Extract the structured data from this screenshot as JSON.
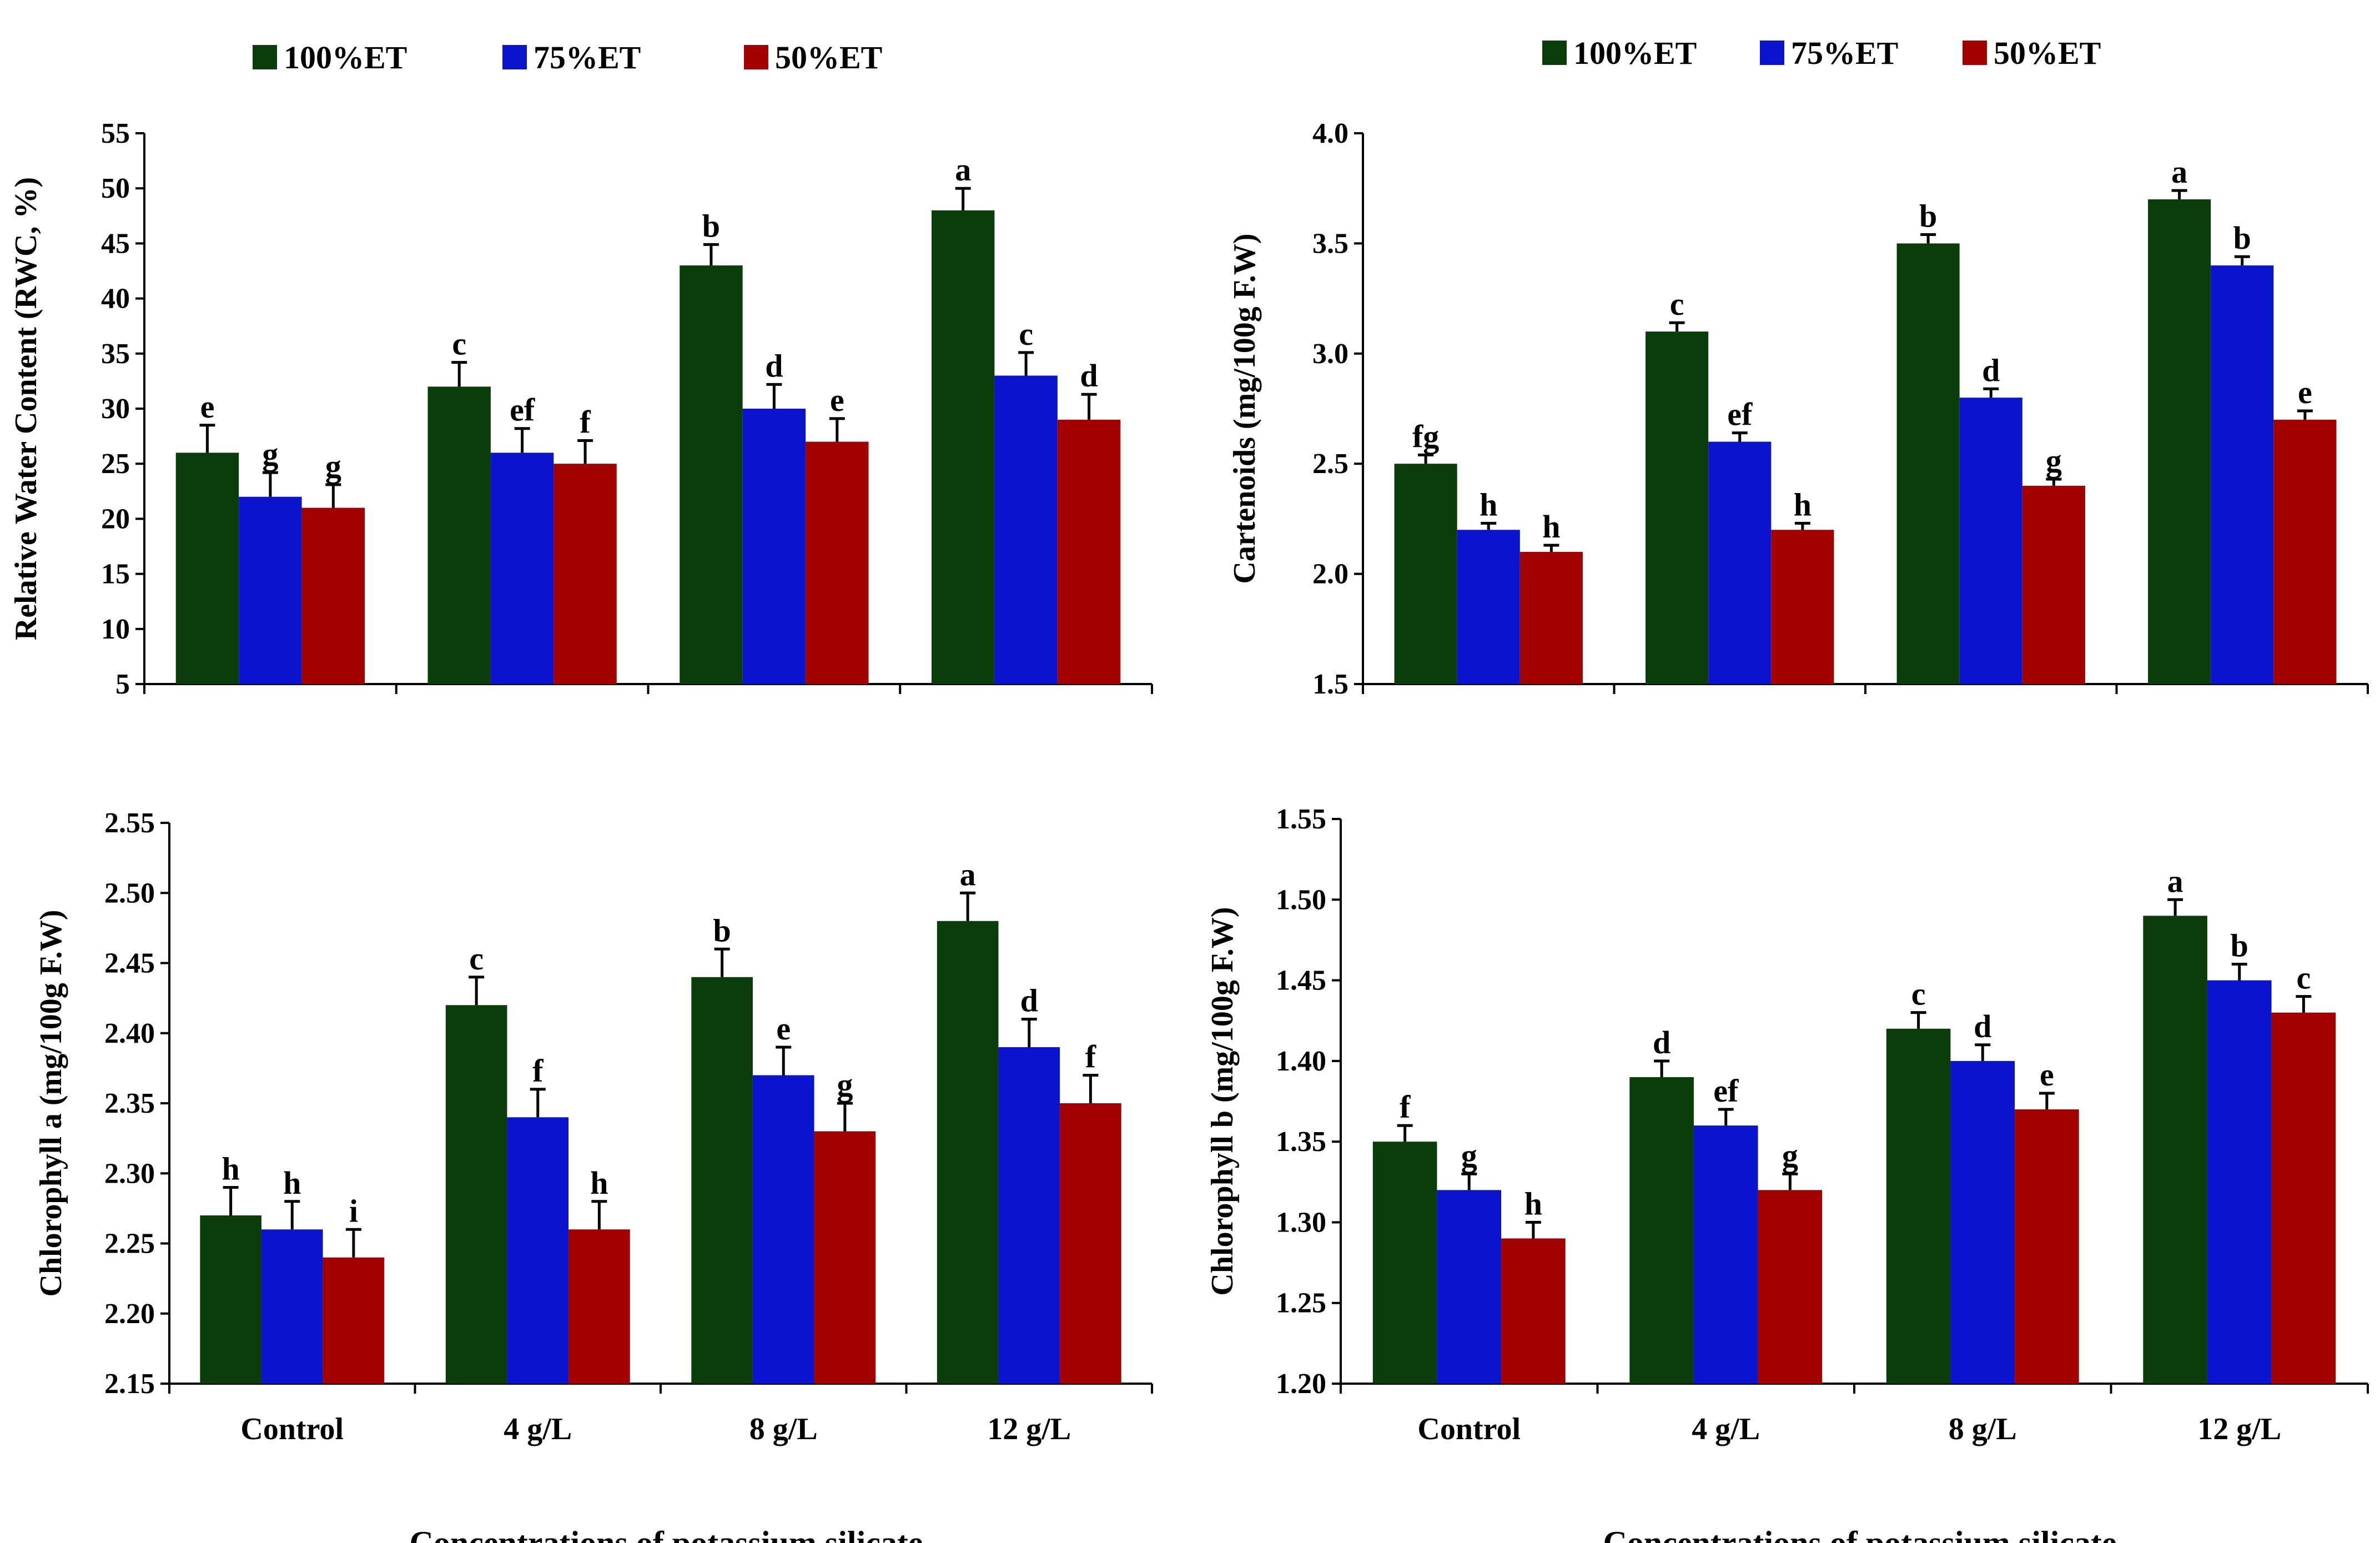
{
  "colors": {
    "100%ET": "#0b3d0b",
    "75%ET": "#0a14cc",
    "50%ET": "#a30000"
  },
  "legend": [
    "100%ET",
    "75%ET",
    "50%ET"
  ],
  "x_title": "Concentrations of potassium silicate",
  "chart_data": [
    {
      "type": "bar",
      "ylabel": "Relative Water Content (RWC, %)",
      "categories": [
        "Control",
        "4 g/L",
        "8 g/L",
        "12 g/L"
      ],
      "ylim": [
        5,
        55
      ],
      "yticks": [
        5,
        10,
        15,
        20,
        25,
        30,
        35,
        40,
        45,
        50,
        55
      ],
      "ytick_labels": [
        "5",
        "10",
        "15",
        "20",
        "25",
        "30",
        "35",
        "40",
        "45",
        "50",
        "55"
      ],
      "series": [
        {
          "name": "100%ET",
          "values": [
            26,
            32,
            43,
            48
          ],
          "errors": [
            2.5,
            2.2,
            1.9,
            2.0
          ],
          "letters": [
            "e",
            "c",
            "b",
            "a"
          ]
        },
        {
          "name": "75%ET",
          "values": [
            22,
            26,
            30,
            33
          ],
          "errors": [
            2.2,
            2.2,
            2.2,
            2.1
          ],
          "letters": [
            "g",
            "ef",
            "d",
            "c"
          ]
        },
        {
          "name": "50%ET",
          "values": [
            21,
            25,
            27,
            29
          ],
          "errors": [
            2.1,
            2.1,
            2.1,
            2.3
          ],
          "letters": [
            "g",
            "f",
            "e",
            "d"
          ]
        }
      ]
    },
    {
      "type": "bar",
      "ylabel": "Cartenoids (mg/100g F.W)",
      "categories": [
        "Control",
        "4 g/L",
        "8 g/L",
        "12 g/L"
      ],
      "ylim": [
        1.5,
        4.0
      ],
      "yticks": [
        1.5,
        2.0,
        2.5,
        3.0,
        3.5,
        4.0
      ],
      "ytick_labels": [
        "1.5",
        "2.0",
        "2.5",
        "3.0",
        "3.5",
        "4.0"
      ],
      "series": [
        {
          "name": "100%ET",
          "values": [
            2.5,
            3.1,
            3.5,
            3.7
          ],
          "errors": [
            0.04,
            0.04,
            0.04,
            0.04
          ],
          "letters": [
            "fg",
            "c",
            "b",
            "a"
          ]
        },
        {
          "name": "75%ET",
          "values": [
            2.2,
            2.6,
            2.8,
            3.4
          ],
          "errors": [
            0.03,
            0.04,
            0.04,
            0.04
          ],
          "letters": [
            "h",
            "ef",
            "d",
            "b"
          ]
        },
        {
          "name": "50%ET",
          "values": [
            2.1,
            2.2,
            2.4,
            2.7
          ],
          "errors": [
            0.03,
            0.03,
            0.03,
            0.04
          ],
          "letters": [
            "h",
            "h",
            "g",
            "e"
          ]
        }
      ]
    },
    {
      "type": "bar",
      "ylabel": "Chlorophyll a (mg/100g F.W)",
      "categories": [
        "Control",
        "4 g/L",
        "8 g/L",
        "12 g/L"
      ],
      "ylim": [
        2.15,
        2.55
      ],
      "yticks": [
        2.15,
        2.2,
        2.25,
        2.3,
        2.35,
        2.4,
        2.45,
        2.5,
        2.55
      ],
      "ytick_labels": [
        "2.15",
        "2.20",
        "2.25",
        "2.30",
        "2.35",
        "2.40",
        "2.45",
        "2.50",
        "2.55"
      ],
      "series": [
        {
          "name": "100%ET",
          "values": [
            2.27,
            2.42,
            2.44,
            2.48
          ],
          "errors": [
            0.02,
            0.02,
            0.02,
            0.02
          ],
          "letters": [
            "h",
            "c",
            "b",
            "a"
          ]
        },
        {
          "name": "75%ET",
          "values": [
            2.26,
            2.34,
            2.37,
            2.39
          ],
          "errors": [
            0.02,
            0.02,
            0.02,
            0.02
          ],
          "letters": [
            "h",
            "f",
            "e",
            "d"
          ]
        },
        {
          "name": "50%ET",
          "values": [
            2.24,
            2.26,
            2.33,
            2.35
          ],
          "errors": [
            0.02,
            0.02,
            0.02,
            0.02
          ],
          "letters": [
            "i",
            "h",
            "g",
            "f"
          ]
        }
      ]
    },
    {
      "type": "bar",
      "ylabel": "Chlorophyll b (mg/100g F.W)",
      "categories": [
        "Control",
        "4 g/L",
        "8 g/L",
        "12 g/L"
      ],
      "ylim": [
        1.2,
        1.55
      ],
      "yticks": [
        1.2,
        1.25,
        1.3,
        1.35,
        1.4,
        1.45,
        1.5,
        1.55
      ],
      "ytick_labels": [
        "1.20",
        "1.25",
        "1.30",
        "1.35",
        "1.40",
        "1.45",
        "1.50",
        "1.55"
      ],
      "series": [
        {
          "name": "100%ET",
          "values": [
            1.35,
            1.39,
            1.42,
            1.49
          ],
          "errors": [
            0.01,
            0.01,
            0.01,
            0.01
          ],
          "letters": [
            "f",
            "d",
            "c",
            "a"
          ]
        },
        {
          "name": "75%ET",
          "values": [
            1.32,
            1.36,
            1.4,
            1.45
          ],
          "errors": [
            0.01,
            0.01,
            0.01,
            0.01
          ],
          "letters": [
            "g",
            "ef",
            "d",
            "b"
          ]
        },
        {
          "name": "50%ET",
          "values": [
            1.29,
            1.32,
            1.37,
            1.43
          ],
          "errors": [
            0.01,
            0.01,
            0.01,
            0.01
          ],
          "letters": [
            "h",
            "g",
            "e",
            "c"
          ]
        }
      ]
    }
  ]
}
